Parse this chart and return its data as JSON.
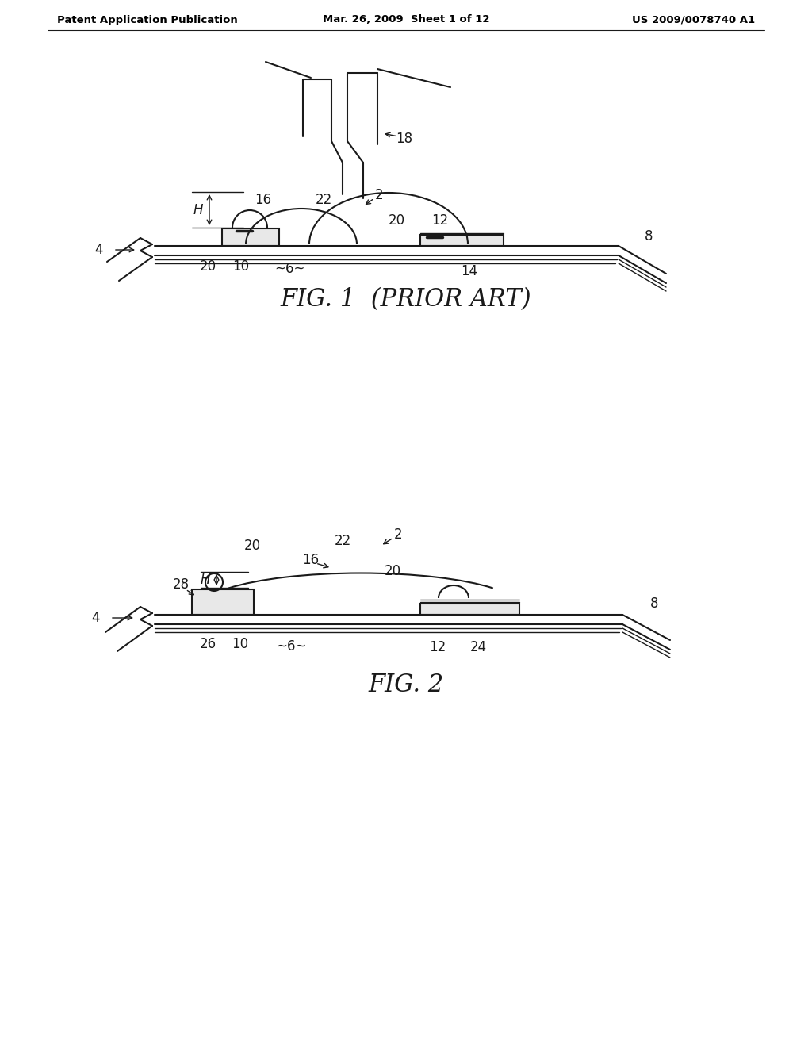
{
  "bg_color": "#ffffff",
  "header_left": "Patent Application Publication",
  "header_mid": "Mar. 26, 2009  Sheet 1 of 12",
  "header_right": "US 2009/0078740 A1",
  "fig1_caption": "FIG. 1  (PRIOR ART)",
  "fig2_caption": "FIG. 2",
  "line_color": "#1a1a1a",
  "lw": 1.5,
  "lw_thin": 1.0,
  "lw_thick": 2.5
}
